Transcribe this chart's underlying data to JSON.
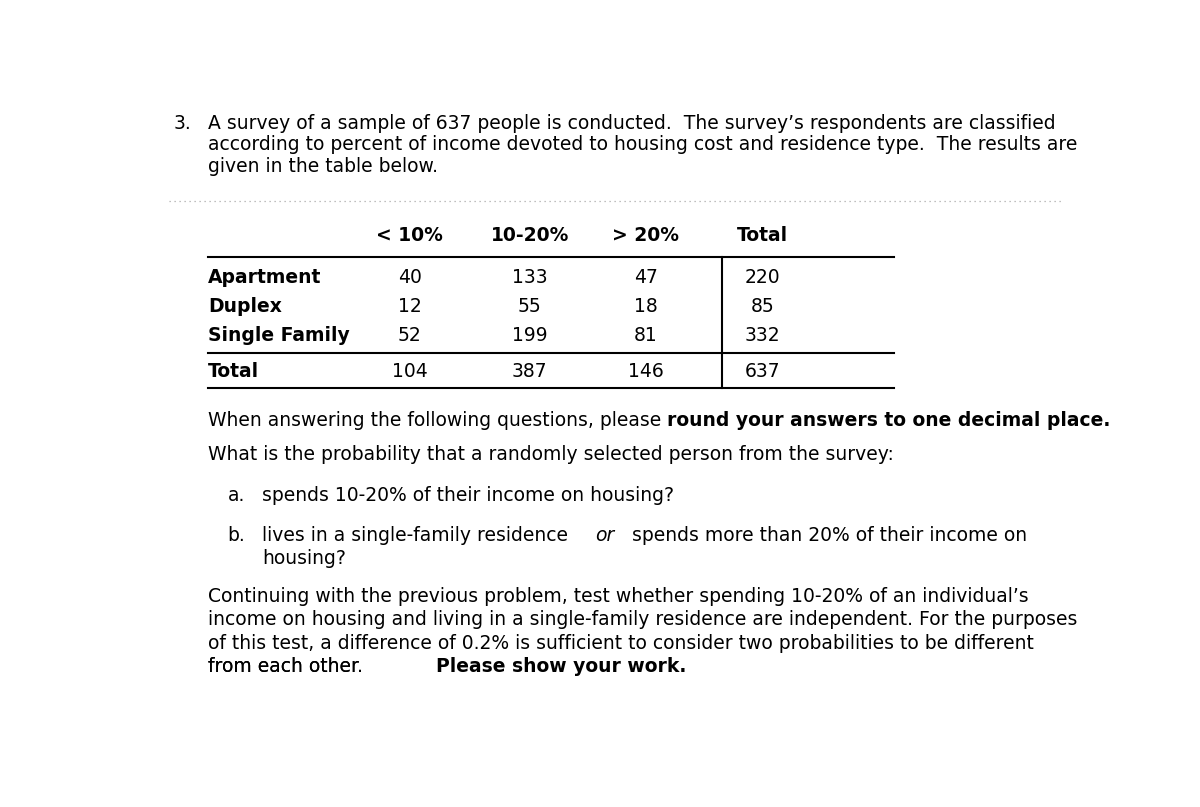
{
  "bg_color": "#ffffff",
  "problem_number": "3.",
  "intro_lines": [
    "A survey of a sample of 637 people is conducted.  The survey’s respondents are classified",
    "according to percent of income devoted to housing cost and residence type.  The results are",
    "given in the table below."
  ],
  "table": {
    "col_headers": [
      "< 10%",
      "10-20%",
      "> 20%",
      "Total"
    ],
    "row_headers": [
      "Apartment",
      "Duplex",
      "Single Family",
      "Total"
    ],
    "data": [
      [
        40,
        133,
        47,
        220
      ],
      [
        12,
        55,
        18,
        85
      ],
      [
        52,
        199,
        81,
        332
      ],
      [
        104,
        387,
        146,
        637
      ]
    ]
  },
  "instructions_plain": "When answering the following questions, please ",
  "instructions_bold": "round your answers to one decimal place.",
  "what_is_prob": "What is the probability that a randomly selected person from the survey:",
  "qa_a_label": "a.",
  "qa_a_text": "spends 10-20% of their income on housing?",
  "qa_b_label": "b.",
  "qa_b_plain1": "lives in a single-family residence ",
  "qa_b_italic": "or",
  "qa_b_plain2": " spends more than 20% of their income on",
  "qa_b_line2": "housing?",
  "cont_lines": [
    "Continuing with the previous problem, test whether spending 10-20% of an individual’s",
    "income on housing and living in a single-family residence are independent. For the purposes",
    "of this test, a difference of 0.2% is sufficient to consider two probabilities to be different",
    "from each other. "
  ],
  "cont_bold": "Please show your work.",
  "font_size": 13.5,
  "font_family": "DejaVu Sans"
}
